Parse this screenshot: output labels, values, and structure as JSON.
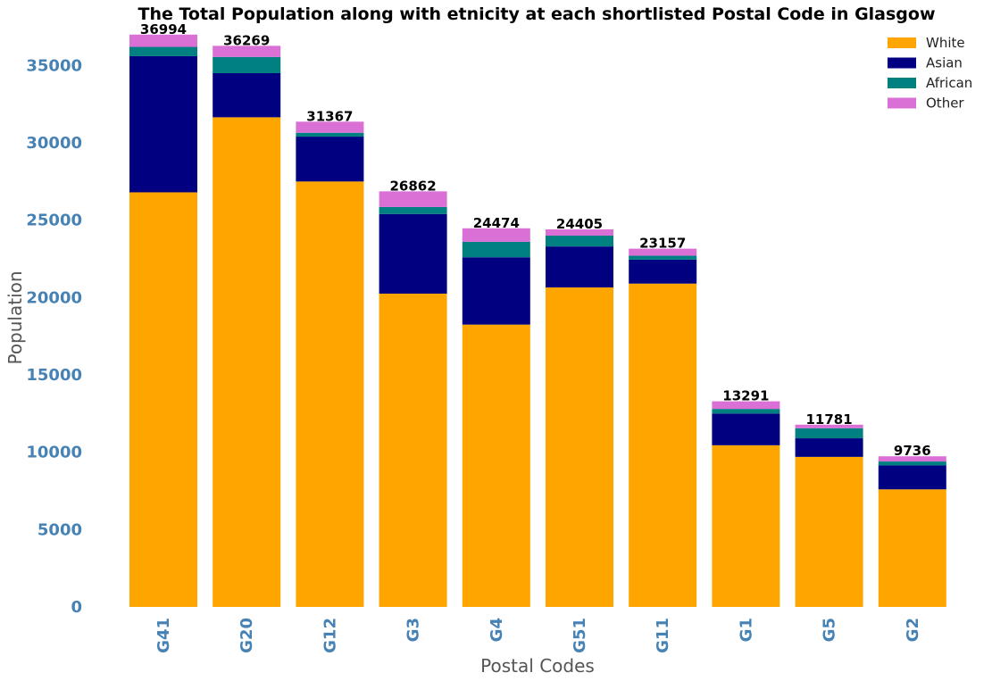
{
  "chart_data": {
    "type": "bar",
    "stacked": true,
    "title": "The Total Population along with etnicity at each shortlisted Postal Code in Glasgow",
    "xlabel": "Postal Codes",
    "ylabel": "Population",
    "ylim": [
      0,
      37500
    ],
    "yticks": [
      0,
      5000,
      10000,
      15000,
      20000,
      25000,
      30000,
      35000
    ],
    "grid": false,
    "legend_position": "top-right",
    "categories": [
      "G41",
      "G20",
      "G12",
      "G3",
      "G4",
      "G51",
      "G11",
      "G1",
      "G5",
      "G2"
    ],
    "totals": [
      36994,
      36269,
      31367,
      26862,
      24474,
      24405,
      23157,
      13291,
      11781,
      9736
    ],
    "series": [
      {
        "name": "White",
        "color": "#ffa500",
        "values": [
          26800,
          31650,
          27500,
          20250,
          18250,
          20650,
          20900,
          10450,
          9700,
          7600
        ]
      },
      {
        "name": "Asian",
        "color": "#000080",
        "values": [
          8800,
          2850,
          2900,
          5150,
          4350,
          2650,
          1550,
          2050,
          1200,
          1550
        ]
      },
      {
        "name": "African",
        "color": "#008080",
        "values": [
          600,
          1050,
          250,
          450,
          1000,
          700,
          250,
          300,
          650,
          250
        ]
      },
      {
        "name": "Other",
        "color": "#da70d6",
        "values": [
          794,
          719,
          717,
          1012,
          874,
          405,
          457,
          491,
          231,
          336
        ]
      }
    ]
  }
}
